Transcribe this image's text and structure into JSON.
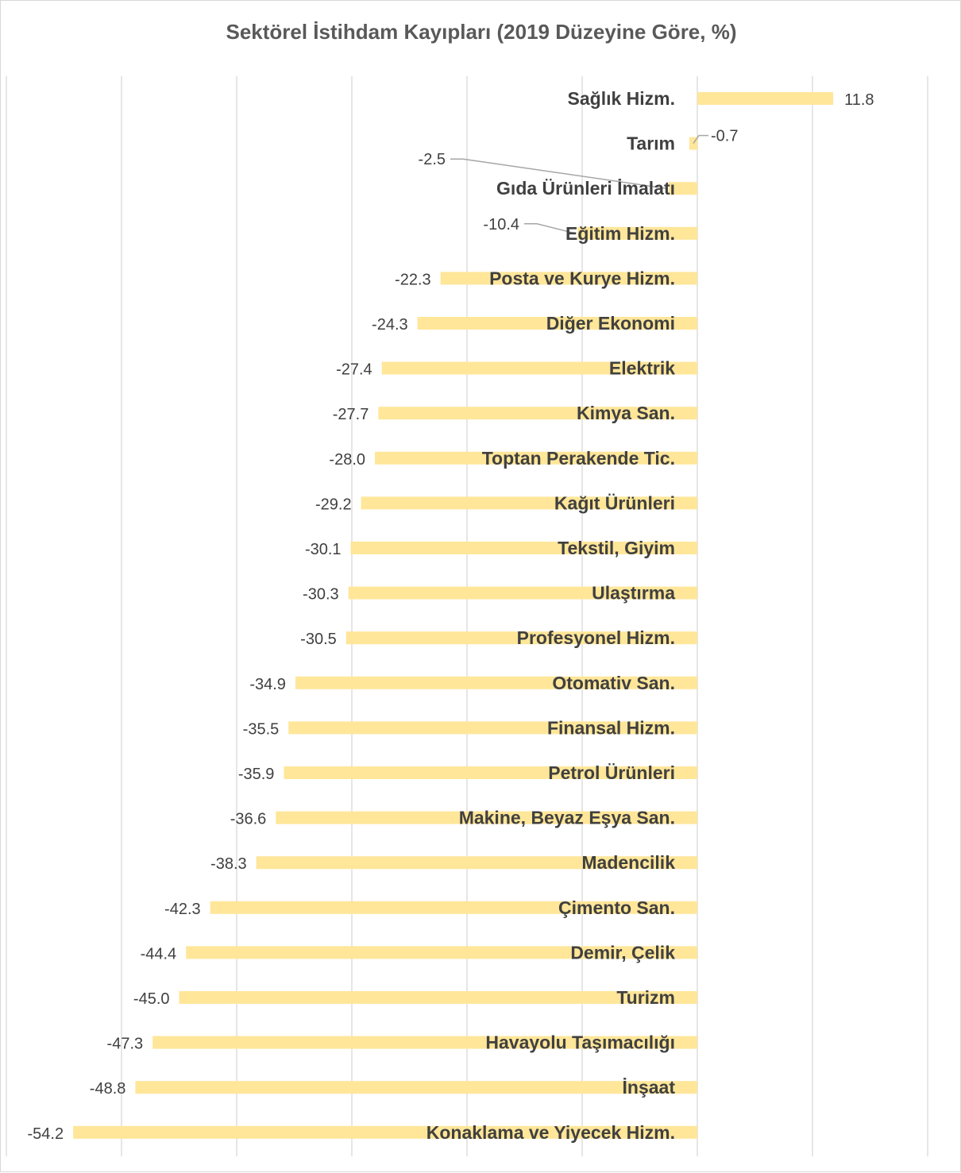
{
  "chart_data": {
    "type": "bar",
    "orientation": "horizontal",
    "title": "Sektörel İstihdam Kayıpları (2019 Düzeyine Göre, %)",
    "xlabel": "",
    "ylabel": "",
    "xlim": [
      -60,
      20
    ],
    "grid": true,
    "legend": "none",
    "bar_color": "#FFE699",
    "categories": [
      "Sağlık Hizm.",
      "Tarım",
      "Gıda Ürünleri İmalatı",
      "Eğitim Hizm.",
      "Posta ve Kurye Hizm.",
      "Diğer Ekonomi",
      "Elektrik",
      "Kimya San.",
      "Toptan Perakende Tic.",
      "Kağıt Ürünleri",
      "Tekstil, Giyim",
      "Ulaştırma",
      "Profesyonel Hizm.",
      "Otomativ San.",
      "Finansal Hizm.",
      "Petrol Ürünleri",
      "Makine, Beyaz Eşya San.",
      "Madencilik",
      "Çimento San.",
      "Demir, Çelik",
      "Turizm",
      "Havayolu Taşımacılığı",
      "İnşaat",
      "Konaklama ve Yiyecek Hizm."
    ],
    "values": [
      11.8,
      -0.7,
      -2.5,
      -10.4,
      -22.3,
      -24.3,
      -27.4,
      -27.7,
      -28.0,
      -29.2,
      -30.1,
      -30.3,
      -30.5,
      -34.9,
      -35.5,
      -35.9,
      -36.6,
      -38.3,
      -42.3,
      -44.4,
      -45.0,
      -47.3,
      -48.8,
      -54.2
    ],
    "value_labels": [
      "11.8",
      "-0.7",
      "-2.5",
      "-10.4",
      "-22.3",
      "-24.3",
      "-27.4",
      "-27.7",
      "-28.0",
      "-29.2",
      "-30.1",
      "-30.3",
      "-30.5",
      "-34.9",
      "-35.5",
      "-35.9",
      "-36.6",
      "-38.3",
      "-42.3",
      "-44.4",
      "-45.0",
      "-47.3",
      "-48.8",
      "-54.2"
    ]
  }
}
